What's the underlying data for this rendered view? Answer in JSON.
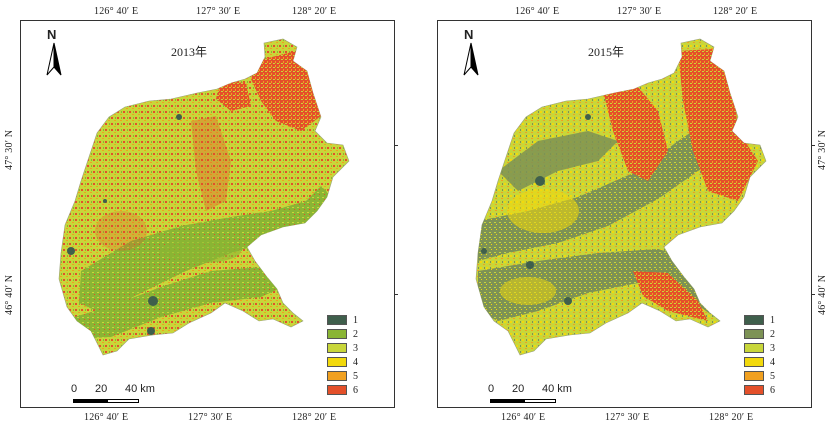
{
  "panels": [
    {
      "title": "2013年",
      "north": "N",
      "coords": {
        "top": [
          "126° 40′ E",
          "127° 30′ E",
          "128° 20′ E"
        ],
        "bottom": [
          "126° 40′ E",
          "127° 30′ E",
          "128° 20′ E"
        ],
        "right": [
          "47° 30′ N",
          "46° 40′ N"
        ]
      },
      "legend": [
        {
          "label": "1",
          "color": "#3f5f4c"
        },
        {
          "label": "2",
          "color": "#8ab534"
        },
        {
          "label": "3",
          "color": "#c8d63a"
        },
        {
          "label": "4",
          "color": "#f2d90c"
        },
        {
          "label": "5",
          "color": "#f0a020"
        },
        {
          "label": "6",
          "color": "#e4502a"
        }
      ],
      "scale": {
        "labels": [
          "0",
          "20",
          "40 km"
        ]
      }
    },
    {
      "title": "2015年",
      "north": "N",
      "coords": {
        "top": [
          "126° 40′ E",
          "127° 30′ E",
          "128° 20′ E"
        ],
        "bottom": [
          "126° 40′ E",
          "127° 30′ E",
          "128° 20′ E"
        ],
        "right": [
          "47° 30′ N",
          "46° 40′ N"
        ]
      },
      "legend": [
        {
          "label": "1",
          "color": "#3f5f4c"
        },
        {
          "label": "2",
          "color": "#7d9255"
        },
        {
          "label": "3",
          "color": "#c8d63a"
        },
        {
          "label": "4",
          "color": "#f2d90c"
        },
        {
          "label": "5",
          "color": "#f0a020"
        },
        {
          "label": "6",
          "color": "#e4502a"
        }
      ],
      "scale": {
        "labels": [
          "0",
          "20",
          "40 km"
        ]
      }
    }
  ]
}
